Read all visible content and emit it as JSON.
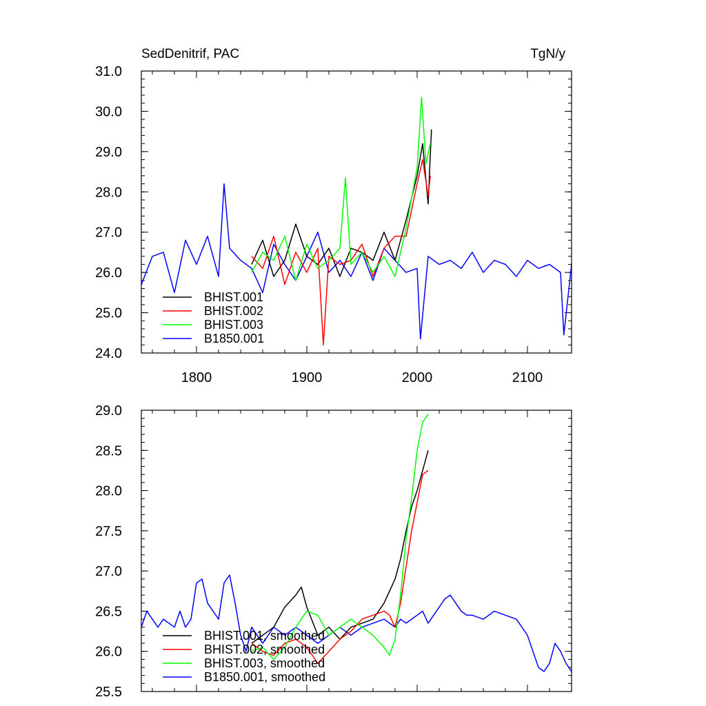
{
  "header": {
    "title": "SedDenitrif, PAC",
    "units": "TgN/y"
  },
  "colors": {
    "BHIST.001": "#000000",
    "BHIST.002": "#ff0000",
    "BHIST.003": "#00ff00",
    "B1850.001": "#0000ff"
  },
  "chart_data": [
    {
      "type": "line",
      "title": "SedDenitrif, PAC",
      "units_label": "TgN/y",
      "xlim": [
        1750,
        2140
      ],
      "ylim": [
        24.0,
        31.0
      ],
      "x_ticks": [
        1800,
        1900,
        2000,
        2100
      ],
      "x_tick_labels": [
        "1800",
        "1900",
        "2000",
        "2100"
      ],
      "y_ticks": [
        24.0,
        25.0,
        26.0,
        27.0,
        28.0,
        29.0,
        30.0,
        31.0
      ],
      "y_tick_labels": [
        "24.0",
        "25.0",
        "26.0",
        "27.0",
        "28.0",
        "29.0",
        "30.0",
        "31.0"
      ],
      "legend_position": "bottom-left",
      "legend": [
        "BHIST.001",
        "BHIST.002",
        "BHIST.003",
        "B1850.001"
      ],
      "series": [
        {
          "name": "B1850.001",
          "color": "#0000ff",
          "x": [
            1750,
            1760,
            1770,
            1780,
            1790,
            1800,
            1810,
            1820,
            1825,
            1830,
            1840,
            1850,
            1860,
            1870,
            1880,
            1890,
            1900,
            1910,
            1920,
            1930,
            1940,
            1950,
            1960,
            1970,
            1980,
            1990,
            2000,
            2003,
            2010,
            2020,
            2030,
            2040,
            2050,
            2060,
            2070,
            2080,
            2090,
            2100,
            2110,
            2120,
            2130,
            2133,
            2140
          ],
          "y": [
            25.7,
            26.4,
            26.5,
            25.5,
            26.8,
            26.2,
            26.9,
            25.9,
            28.2,
            26.6,
            26.3,
            26.1,
            25.5,
            26.7,
            26.2,
            25.8,
            26.4,
            27.0,
            26.0,
            26.3,
            25.9,
            26.5,
            25.8,
            26.6,
            26.3,
            26.0,
            26.1,
            24.35,
            26.4,
            26.2,
            26.3,
            26.1,
            26.5,
            26.0,
            26.3,
            26.2,
            25.9,
            26.3,
            26.1,
            26.2,
            26.0,
            24.45,
            26.2
          ]
        },
        {
          "name": "BHIST.001",
          "color": "#000000",
          "x": [
            1850,
            1860,
            1870,
            1880,
            1890,
            1900,
            1910,
            1920,
            1930,
            1940,
            1950,
            1960,
            1970,
            1980,
            1990,
            2000,
            2005,
            2010,
            2013
          ],
          "y": [
            26.2,
            26.8,
            25.9,
            26.3,
            27.2,
            26.4,
            26.2,
            26.6,
            25.9,
            26.6,
            26.5,
            26.3,
            27.0,
            26.3,
            27.3,
            28.4,
            29.2,
            27.7,
            29.55
          ]
        },
        {
          "name": "BHIST.002",
          "color": "#ff0000",
          "x": [
            1850,
            1860,
            1870,
            1880,
            1890,
            1900,
            1910,
            1915,
            1920,
            1930,
            1940,
            1950,
            1960,
            1970,
            1980,
            1990,
            2000,
            2005,
            2010,
            2012
          ],
          "y": [
            26.4,
            26.1,
            26.9,
            25.7,
            26.5,
            26.0,
            26.6,
            24.2,
            26.4,
            26.2,
            26.3,
            26.7,
            25.9,
            26.6,
            26.9,
            26.9,
            28.2,
            28.8,
            27.9,
            28.4
          ]
        },
        {
          "name": "BHIST.003",
          "color": "#00ff00",
          "x": [
            1850,
            1860,
            1870,
            1880,
            1890,
            1900,
            1910,
            1920,
            1930,
            1935,
            1940,
            1950,
            1960,
            1970,
            1980,
            1990,
            2000,
            2004,
            2008,
            2012
          ],
          "y": [
            26.0,
            26.5,
            26.3,
            26.9,
            25.8,
            26.7,
            26.1,
            26.3,
            26.6,
            28.35,
            26.2,
            26.5,
            26.0,
            26.4,
            25.9,
            27.1,
            28.6,
            30.35,
            28.7,
            29.2
          ]
        }
      ]
    },
    {
      "type": "line",
      "xlim": [
        1750,
        2140
      ],
      "ylim": [
        25.5,
        29.0
      ],
      "x_ticks": [
        1800,
        1900,
        2000,
        2100
      ],
      "x_tick_labels": [],
      "y_ticks": [
        25.5,
        26.0,
        26.5,
        27.0,
        27.5,
        28.0,
        28.5,
        29.0
      ],
      "y_tick_labels": [
        "25.5",
        "26.0",
        "26.5",
        "27.0",
        "27.5",
        "28.0",
        "28.5",
        "29.0"
      ],
      "legend_position": "bottom-left",
      "legend": [
        "BHIST.001, smoothed",
        "BHIST.002, smoothed",
        "BHIST.003, smoothed",
        "B1850.001, smoothed"
      ],
      "series": [
        {
          "name": "B1850.001, smoothed",
          "color": "#0000ff",
          "x": [
            1750,
            1755,
            1760,
            1765,
            1770,
            1775,
            1780,
            1785,
            1790,
            1795,
            1800,
            1805,
            1810,
            1815,
            1820,
            1825,
            1830,
            1835,
            1840,
            1845,
            1850,
            1855,
            1860,
            1870,
            1880,
            1890,
            1900,
            1910,
            1920,
            1930,
            1940,
            1950,
            1960,
            1970,
            1975,
            1980,
            1985,
            1990,
            1995,
            2000,
            2005,
            2010,
            2015,
            2020,
            2025,
            2030,
            2035,
            2040,
            2045,
            2050,
            2060,
            2070,
            2080,
            2090,
            2100,
            2105,
            2110,
            2115,
            2120,
            2125,
            2130,
            2135,
            2140
          ],
          "y": [
            26.3,
            26.5,
            26.4,
            26.3,
            26.4,
            26.35,
            26.3,
            26.5,
            26.3,
            26.4,
            26.85,
            26.9,
            26.6,
            26.5,
            26.4,
            26.85,
            26.95,
            26.6,
            26.2,
            26.0,
            26.3,
            26.2,
            26.1,
            26.3,
            26.2,
            26.3,
            26.2,
            26.1,
            26.2,
            26.3,
            26.2,
            26.3,
            26.35,
            26.4,
            26.35,
            26.3,
            26.4,
            26.35,
            26.4,
            26.45,
            26.5,
            26.35,
            26.45,
            26.55,
            26.65,
            26.7,
            26.6,
            26.5,
            26.45,
            26.45,
            26.4,
            26.5,
            26.45,
            26.4,
            26.2,
            26.0,
            25.8,
            25.75,
            25.85,
            26.1,
            26.0,
            25.85,
            25.75
          ]
        },
        {
          "name": "BHIST.001, smoothed",
          "color": "#000000",
          "x": [
            1850,
            1860,
            1870,
            1880,
            1890,
            1895,
            1900,
            1910,
            1920,
            1930,
            1940,
            1950,
            1960,
            1970,
            1980,
            1985,
            1990,
            1995,
            2000,
            2005,
            2010
          ],
          "y": [
            26.1,
            26.2,
            26.3,
            26.55,
            26.7,
            26.8,
            26.55,
            26.2,
            26.3,
            26.15,
            26.3,
            26.35,
            26.4,
            26.6,
            26.9,
            27.15,
            27.5,
            27.8,
            28.0,
            28.25,
            28.5
          ]
        },
        {
          "name": "BHIST.002, smoothed",
          "color": "#ff0000",
          "x": [
            1850,
            1860,
            1870,
            1880,
            1890,
            1900,
            1910,
            1920,
            1930,
            1940,
            1950,
            1960,
            1970,
            1975,
            1980,
            1985,
            1990,
            1995,
            2000,
            2005,
            2010
          ],
          "y": [
            26.1,
            26.0,
            25.95,
            26.1,
            26.15,
            26.05,
            25.85,
            26.0,
            26.15,
            26.25,
            26.4,
            26.45,
            26.5,
            26.45,
            26.3,
            26.6,
            27.05,
            27.5,
            27.85,
            28.2,
            28.25
          ]
        },
        {
          "name": "BHIST.003, smoothed",
          "color": "#00ff00",
          "x": [
            1850,
            1860,
            1870,
            1880,
            1890,
            1900,
            1910,
            1920,
            1930,
            1940,
            1950,
            1960,
            1970,
            1975,
            1980,
            1985,
            1990,
            1995,
            2000,
            2005,
            2010
          ],
          "y": [
            26.0,
            26.05,
            25.9,
            26.05,
            26.3,
            26.5,
            26.45,
            26.2,
            26.3,
            26.4,
            26.3,
            26.2,
            26.05,
            25.95,
            26.15,
            26.7,
            27.4,
            27.9,
            28.5,
            28.85,
            28.95
          ]
        }
      ]
    }
  ]
}
